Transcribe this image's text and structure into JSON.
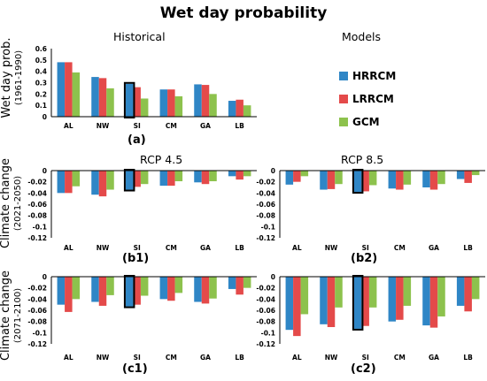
{
  "title": "Wet day probability",
  "legend": {
    "heading": "Models",
    "items": [
      {
        "name": "HRRCM",
        "color": "#2f86c6"
      },
      {
        "name": "LRRCM",
        "color": "#e44a4a"
      },
      {
        "name": "GCM",
        "color": "#8dc24d"
      }
    ]
  },
  "row_labels": {
    "historical": {
      "line1": "Wet day prob.",
      "line2": "(1961-1990)"
    },
    "mid": {
      "line1": "Climate change",
      "line2": "(2021-2050)"
    },
    "end": {
      "line1": "Climate change",
      "line2": "(2071-2100)"
    }
  },
  "column_titles": {
    "rcp45": "RCP 4.5",
    "rcp85": "RCP 8.5"
  },
  "chart_data": [
    {
      "id": "a",
      "type": "bar",
      "title": "Historical",
      "panel_label": "(a)",
      "categories": [
        "AL",
        "NW",
        "SI",
        "CM",
        "GA",
        "LB"
      ],
      "highlight_category": "SI",
      "ylim": [
        0,
        0.6
      ],
      "yticks": [
        "0",
        "0.1",
        "0.2",
        "0.3",
        "0.4",
        "0.5",
        "0.6"
      ],
      "series": [
        {
          "name": "HRRCM",
          "values": [
            0.48,
            0.35,
            0.29,
            0.24,
            0.285,
            0.14
          ]
        },
        {
          "name": "LRRCM",
          "values": [
            0.48,
            0.34,
            0.26,
            0.24,
            0.28,
            0.15
          ]
        },
        {
          "name": "GCM",
          "values": [
            0.39,
            0.25,
            0.16,
            0.18,
            0.2,
            0.1
          ]
        }
      ]
    },
    {
      "id": "b1",
      "type": "bar",
      "title": "",
      "panel_label": "(b1)",
      "categories": [
        "AL",
        "NW",
        "SI",
        "CM",
        "GA",
        "LB"
      ],
      "highlight_category": "SI",
      "ylim": [
        -0.12,
        0
      ],
      "yticks": [
        "0",
        "-0.02",
        "-0.04",
        "-0.06",
        "-0.08",
        "-0.1",
        "-0.12"
      ],
      "series": [
        {
          "name": "HRRCM",
          "values": [
            -0.04,
            -0.043,
            -0.034,
            -0.027,
            -0.021,
            -0.01
          ]
        },
        {
          "name": "LRRCM",
          "values": [
            -0.04,
            -0.046,
            -0.029,
            -0.027,
            -0.024,
            -0.016
          ]
        },
        {
          "name": "GCM",
          "values": [
            -0.028,
            -0.034,
            -0.024,
            -0.019,
            -0.019,
            -0.01
          ]
        }
      ]
    },
    {
      "id": "b2",
      "type": "bar",
      "title": "",
      "panel_label": "(b2)",
      "categories": [
        "AL",
        "NW",
        "SI",
        "CM",
        "GA",
        "LB"
      ],
      "highlight_category": "SI",
      "ylim": [
        -0.12,
        0
      ],
      "yticks": [
        "0",
        "-0.02",
        "-0.04",
        "-0.06",
        "-0.08",
        "-0.1",
        "-0.12"
      ],
      "series": [
        {
          "name": "HRRCM",
          "values": [
            -0.025,
            -0.034,
            -0.038,
            -0.032,
            -0.03,
            -0.015
          ]
        },
        {
          "name": "LRRCM",
          "values": [
            -0.02,
            -0.033,
            -0.037,
            -0.034,
            -0.034,
            -0.022
          ]
        },
        {
          "name": "GCM",
          "values": [
            -0.01,
            -0.024,
            -0.026,
            -0.025,
            -0.024,
            -0.008
          ]
        }
      ]
    },
    {
      "id": "c1",
      "type": "bar",
      "title": "",
      "panel_label": "(c1)",
      "categories": [
        "AL",
        "NW",
        "SI",
        "CM",
        "GA",
        "LB"
      ],
      "highlight_category": "SI",
      "ylim": [
        -0.12,
        0
      ],
      "yticks": [
        "0",
        "-0.02",
        "-0.04",
        "-0.06",
        "-0.08",
        "-0.1",
        "-0.12"
      ],
      "series": [
        {
          "name": "HRRCM",
          "values": [
            -0.05,
            -0.045,
            -0.053,
            -0.04,
            -0.045,
            -0.022
          ]
        },
        {
          "name": "LRRCM",
          "values": [
            -0.063,
            -0.052,
            -0.05,
            -0.043,
            -0.048,
            -0.032
          ]
        },
        {
          "name": "GCM",
          "values": [
            -0.04,
            -0.033,
            -0.034,
            -0.029,
            -0.039,
            -0.02
          ]
        }
      ]
    },
    {
      "id": "c2",
      "type": "bar",
      "title": "",
      "panel_label": "(c2)",
      "categories": [
        "AL",
        "NW",
        "SI",
        "CM",
        "GA",
        "LB"
      ],
      "highlight_category": "SI",
      "ylim": [
        -0.12,
        0
      ],
      "yticks": [
        "0",
        "-0.02",
        "-0.04",
        "-0.06",
        "-0.08",
        "-0.1",
        "-0.12"
      ],
      "series": [
        {
          "name": "HRRCM",
          "values": [
            -0.095,
            -0.085,
            -0.093,
            -0.08,
            -0.087,
            -0.052
          ]
        },
        {
          "name": "LRRCM",
          "values": [
            -0.106,
            -0.09,
            -0.088,
            -0.077,
            -0.091,
            -0.062
          ]
        },
        {
          "name": "GCM",
          "values": [
            -0.067,
            -0.055,
            -0.055,
            -0.052,
            -0.071,
            -0.04
          ]
        }
      ]
    }
  ]
}
